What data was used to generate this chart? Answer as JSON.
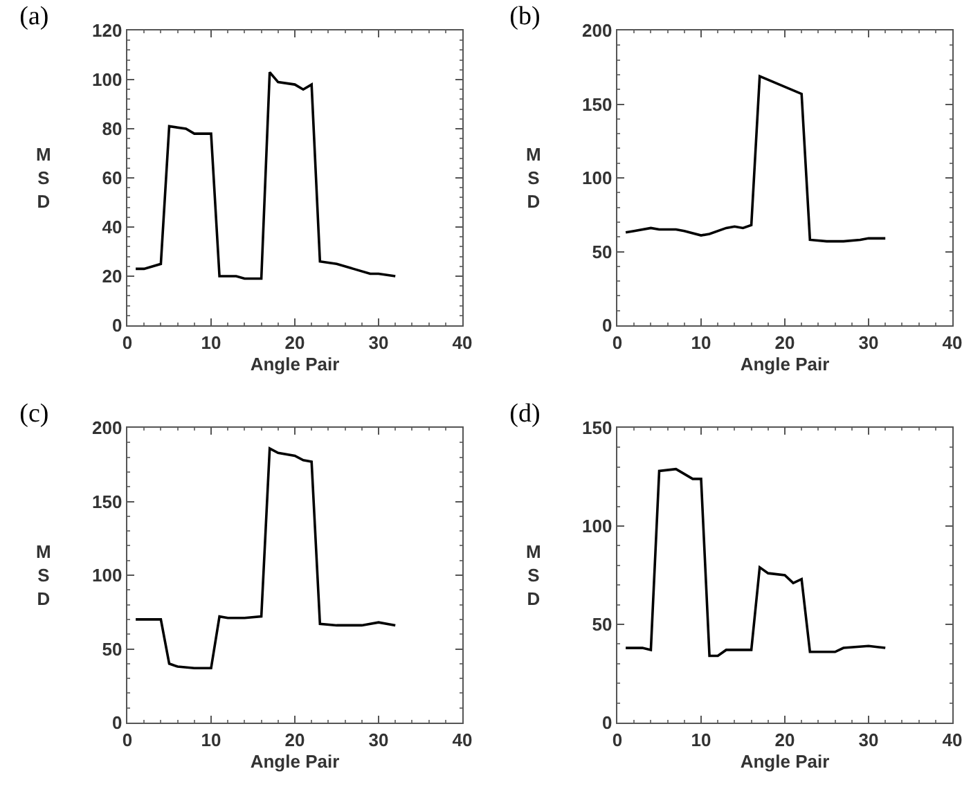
{
  "chart_data": [
    {
      "type": "line",
      "title": "(a)",
      "xlabel": "Angle Pair",
      "ylabel": "MSD",
      "xlim": [
        0,
        40
      ],
      "xticks": [
        0,
        10,
        20,
        30,
        40
      ],
      "ylim": [
        0,
        120
      ],
      "yticks": [
        0,
        20,
        40,
        60,
        80,
        100,
        120
      ],
      "marker": "none",
      "line_style": "solid",
      "series": [
        {
          "color": "#000000",
          "x": [
            1,
            2,
            4,
            5,
            7,
            8,
            10,
            11,
            13,
            14,
            16,
            17,
            18,
            20,
            21,
            22,
            23,
            25,
            27,
            29,
            30,
            32
          ],
          "values": [
            23,
            23,
            25,
            81,
            80,
            78,
            78,
            20,
            20,
            19,
            19,
            103,
            99,
            98,
            96,
            98,
            26,
            25,
            23,
            21,
            21,
            20
          ]
        }
      ]
    },
    {
      "type": "line",
      "title": "(b)",
      "xlabel": "Angle Pair",
      "ylabel": "MSD",
      "xlim": [
        0,
        40
      ],
      "xticks": [
        0,
        10,
        20,
        30,
        40
      ],
      "ylim": [
        0,
        200
      ],
      "yticks": [
        0,
        50,
        100,
        150,
        200
      ],
      "marker": "none",
      "line_style": "solid",
      "series": [
        {
          "color": "#000000",
          "x": [
            1,
            2,
            4,
            5,
            7,
            8,
            10,
            11,
            13,
            14,
            15,
            16,
            17,
            22,
            23,
            25,
            27,
            29,
            30,
            32
          ],
          "values": [
            63,
            64,
            66,
            65,
            65,
            64,
            61,
            62,
            66,
            67,
            66,
            68,
            169,
            157,
            58,
            57,
            57,
            58,
            59,
            59
          ]
        }
      ]
    },
    {
      "type": "line",
      "title": "(c)",
      "xlabel": "Angle Pair",
      "ylabel": "MSD",
      "xlim": [
        0,
        40
      ],
      "xticks": [
        0,
        10,
        20,
        30,
        40
      ],
      "ylim": [
        0,
        200
      ],
      "yticks": [
        0,
        50,
        100,
        150,
        200
      ],
      "marker": "none",
      "line_style": "solid",
      "series": [
        {
          "color": "#000000",
          "x": [
            1,
            4,
            5,
            6,
            8,
            10,
            11,
            12,
            14,
            16,
            17,
            18,
            20,
            21,
            22,
            23,
            25,
            28,
            30,
            32
          ],
          "values": [
            70,
            70,
            40,
            38,
            37,
            37,
            72,
            71,
            71,
            72,
            186,
            183,
            181,
            178,
            177,
            67,
            66,
            66,
            68,
            66
          ]
        }
      ]
    },
    {
      "type": "line",
      "title": "(d)",
      "xlabel": "Angle Pair",
      "ylabel": "MSD",
      "xlim": [
        0,
        40
      ],
      "xticks": [
        0,
        10,
        20,
        30,
        40
      ],
      "ylim": [
        0,
        150
      ],
      "yticks": [
        0,
        50,
        100,
        150
      ],
      "marker": "none",
      "line_style": "solid",
      "series": [
        {
          "color": "#000000",
          "x": [
            1,
            3,
            4,
            5,
            7,
            9,
            10,
            11,
            12,
            13,
            16,
            17,
            18,
            20,
            21,
            22,
            23,
            26,
            27,
            30,
            32
          ],
          "values": [
            38,
            38,
            37,
            128,
            129,
            124,
            124,
            34,
            34,
            37,
            37,
            79,
            76,
            75,
            71,
            73,
            36,
            36,
            38,
            39,
            38
          ]
        }
      ]
    }
  ]
}
